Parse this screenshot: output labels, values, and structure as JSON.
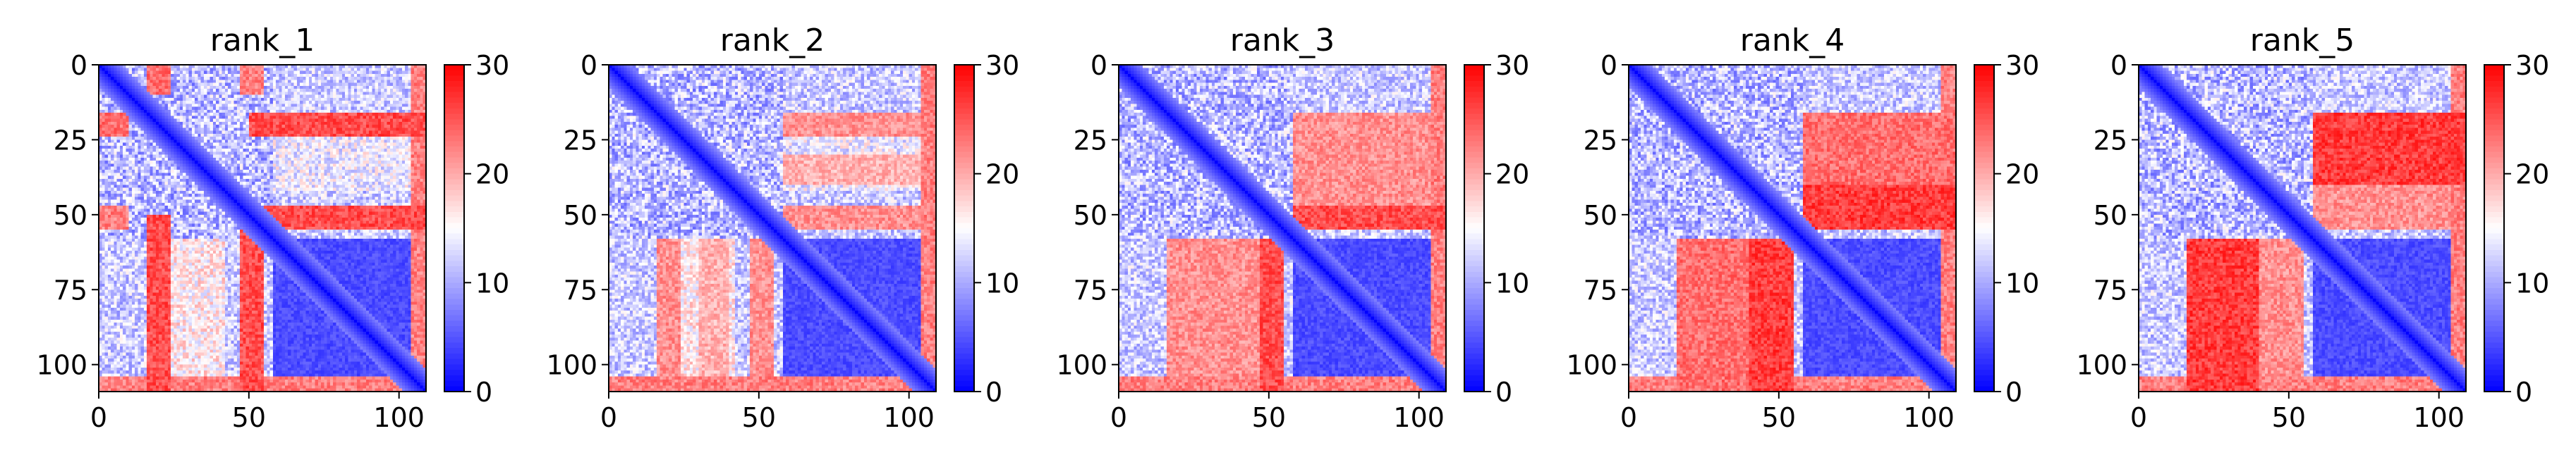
{
  "colors": {
    "low": "#0000ff",
    "mid": "#ffffff",
    "high": "#ff0000",
    "axis": "#000000"
  },
  "chart_data": [
    {
      "type": "heatmap",
      "title": "rank_1",
      "xticks": [
        "0",
        "50",
        "100"
      ],
      "yticks": [
        "0",
        "25",
        "50",
        "75",
        "100"
      ],
      "xlim": [
        0,
        109
      ],
      "ylim": [
        109,
        0
      ],
      "n": 109,
      "colorbar": {
        "min": 0,
        "max": 30,
        "ticks": [
          "0",
          "10",
          "20",
          "30"
        ],
        "colormap": "bwr"
      },
      "hot_bands": [
        {
          "rows": [
            16,
            24
          ],
          "cols": [
            50,
            109
          ],
          "value": 28
        },
        {
          "rows": [
            47,
            55
          ],
          "cols": [
            50,
            109
          ],
          "value": 28
        },
        {
          "rows": [
            104,
            109
          ],
          "cols": [
            0,
            109
          ],
          "value": 25
        },
        {
          "rows": [
            16,
            24
          ],
          "cols": [
            0,
            10
          ],
          "value": 26
        },
        {
          "rows": [
            47,
            55
          ],
          "cols": [
            0,
            10
          ],
          "value": 25
        }
      ]
    },
    {
      "type": "heatmap",
      "title": "rank_2",
      "xticks": [
        "0",
        "50",
        "100"
      ],
      "yticks": [
        "0",
        "25",
        "50",
        "75",
        "100"
      ],
      "xlim": [
        0,
        109
      ],
      "ylim": [
        109,
        0
      ],
      "n": 109,
      "colorbar": {
        "min": 0,
        "max": 30,
        "ticks": [
          "0",
          "10",
          "20",
          "30"
        ],
        "colormap": "bwr"
      },
      "hot_bands": [
        {
          "rows": [
            16,
            24
          ],
          "cols": [
            58,
            109
          ],
          "value": 24
        },
        {
          "rows": [
            30,
            40
          ],
          "cols": [
            58,
            109
          ],
          "value": 22
        },
        {
          "rows": [
            47,
            55
          ],
          "cols": [
            58,
            109
          ],
          "value": 24
        },
        {
          "rows": [
            104,
            109
          ],
          "cols": [
            0,
            109
          ],
          "value": 25
        }
      ]
    },
    {
      "type": "heatmap",
      "title": "rank_3",
      "xticks": [
        "0",
        "50",
        "100"
      ],
      "yticks": [
        "0",
        "25",
        "50",
        "75",
        "100"
      ],
      "xlim": [
        0,
        109
      ],
      "ylim": [
        109,
        0
      ],
      "n": 109,
      "colorbar": {
        "min": 0,
        "max": 30,
        "ticks": [
          "0",
          "10",
          "20",
          "30"
        ],
        "colormap": "bwr"
      },
      "hot_bands": [
        {
          "rows": [
            16,
            55
          ],
          "cols": [
            58,
            109
          ],
          "value": 24
        },
        {
          "rows": [
            47,
            55
          ],
          "cols": [
            58,
            109
          ],
          "value": 28
        },
        {
          "rows": [
            104,
            109
          ],
          "cols": [
            0,
            109
          ],
          "value": 25
        }
      ]
    },
    {
      "type": "heatmap",
      "title": "rank_4",
      "xticks": [
        "0",
        "50",
        "100"
      ],
      "yticks": [
        "0",
        "25",
        "50",
        "75",
        "100"
      ],
      "xlim": [
        0,
        109
      ],
      "ylim": [
        109,
        0
      ],
      "n": 109,
      "colorbar": {
        "min": 0,
        "max": 30,
        "ticks": [
          "0",
          "10",
          "20",
          "30"
        ],
        "colormap": "bwr"
      },
      "hot_bands": [
        {
          "rows": [
            16,
            55
          ],
          "cols": [
            58,
            109
          ],
          "value": 26
        },
        {
          "rows": [
            40,
            55
          ],
          "cols": [
            58,
            109
          ],
          "value": 29
        },
        {
          "rows": [
            104,
            109
          ],
          "cols": [
            0,
            109
          ],
          "value": 25
        }
      ]
    },
    {
      "type": "heatmap",
      "title": "rank_5",
      "xticks": [
        "0",
        "50",
        "100"
      ],
      "yticks": [
        "0",
        "25",
        "50",
        "75",
        "100"
      ],
      "xlim": [
        0,
        109
      ],
      "ylim": [
        109,
        0
      ],
      "n": 109,
      "colorbar": {
        "min": 0,
        "max": 30,
        "ticks": [
          "0",
          "10",
          "20",
          "30"
        ],
        "colormap": "bwr"
      },
      "hot_bands": [
        {
          "rows": [
            16,
            40
          ],
          "cols": [
            58,
            109
          ],
          "value": 29
        },
        {
          "rows": [
            40,
            55
          ],
          "cols": [
            58,
            109
          ],
          "value": 24
        },
        {
          "rows": [
            104,
            109
          ],
          "cols": [
            0,
            109
          ],
          "value": 25
        }
      ]
    }
  ]
}
